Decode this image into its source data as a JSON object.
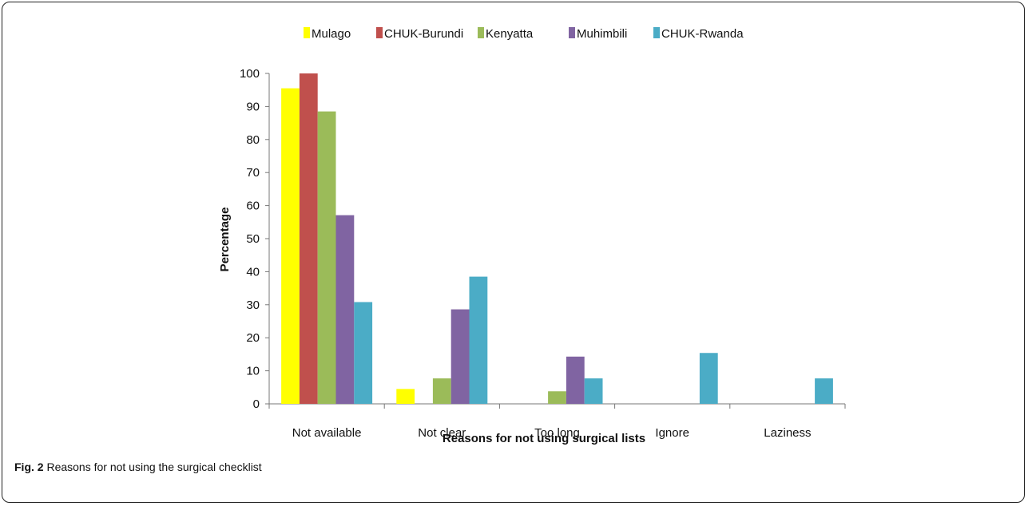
{
  "caption": {
    "label": "Fig. 2",
    "text": "Reasons for not using the surgical checklist"
  },
  "chart_data": {
    "type": "bar",
    "categories": [
      "Not available",
      "Not clear",
      "Too long",
      "Ignore",
      "Laziness"
    ],
    "series": [
      {
        "name": "Mulago",
        "color": "#ffff00",
        "values": [
          95.5,
          4.5,
          0,
          0,
          0
        ]
      },
      {
        "name": "CHUK-Burundi",
        "color": "#c0504d",
        "values": [
          100,
          0,
          0,
          0,
          0
        ]
      },
      {
        "name": "Kenyatta",
        "color": "#9bbb59",
        "values": [
          88.5,
          7.7,
          3.8,
          0,
          0
        ]
      },
      {
        "name": "Muhimbili",
        "color": "#8064a2",
        "values": [
          57.1,
          28.6,
          14.3,
          0,
          0
        ]
      },
      {
        "name": "CHUK-Rwanda",
        "color": "#4bacc6",
        "values": [
          30.8,
          38.5,
          7.7,
          15.4,
          7.7
        ]
      }
    ],
    "xlabel": "Reasons for not using surgical lists",
    "ylabel": "Percentage",
    "ylim": [
      0,
      100
    ],
    "yticks": [
      "0",
      "10",
      "20",
      "30",
      "40",
      "50",
      "60",
      "70",
      "80",
      "90",
      "100"
    ],
    "grid": false,
    "legend": "top"
  }
}
